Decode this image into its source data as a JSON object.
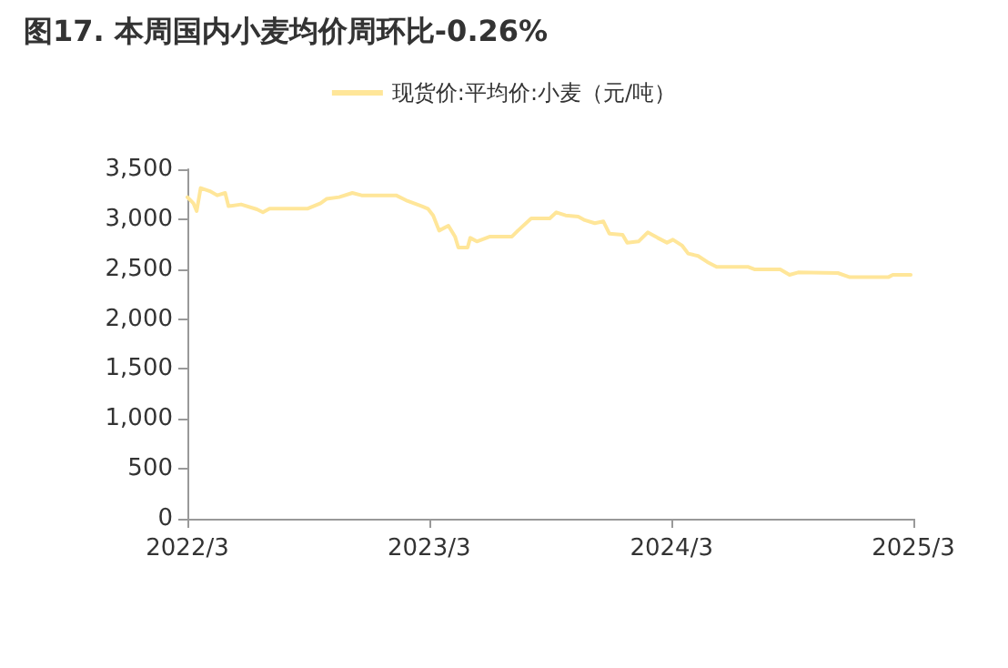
{
  "chart_data": {
    "type": "line",
    "title": "图17. 本周国内小麦均价周环比-0.26%",
    "xlim": [
      "2022-03-01",
      "2025-03-01"
    ],
    "xticks": [
      {
        "value": "2022-03-01",
        "label": "2022/3"
      },
      {
        "value": "2023-03-01",
        "label": "2023/3"
      },
      {
        "value": "2024-03-01",
        "label": "2024/3"
      },
      {
        "value": "2025-03-01",
        "label": "2025/3"
      }
    ],
    "ylim": [
      0,
      3500
    ],
    "yticks": [
      {
        "value": 0,
        "label": "0"
      },
      {
        "value": 500,
        "label": "500"
      },
      {
        "value": 1000,
        "label": "1,000"
      },
      {
        "value": 1500,
        "label": "1,500"
      },
      {
        "value": 2000,
        "label": "2,000"
      },
      {
        "value": 2500,
        "label": "2,500"
      },
      {
        "value": 3000,
        "label": "3,000"
      },
      {
        "value": 3500,
        "label": "3,500"
      }
    ],
    "grid": false,
    "legend": "top",
    "marker": "none",
    "line_style": "solid",
    "series": [
      {
        "name": "现货价:平均价:小麦（元/吨）",
        "color": "#ffe699",
        "x": [
          "2022-03-01",
          "2022-03-10",
          "2022-03-15",
          "2022-03-21",
          "2022-04-04",
          "2022-04-15",
          "2022-04-27",
          "2022-05-02",
          "2022-05-21",
          "2022-06-14",
          "2022-06-23",
          "2022-07-03",
          "2022-08-29",
          "2022-09-18",
          "2022-09-27",
          "2022-10-16",
          "2022-11-05",
          "2022-11-19",
          "2023-01-10",
          "2023-01-25",
          "2023-02-18",
          "2023-02-27",
          "2023-03-07",
          "2023-03-16",
          "2023-03-30",
          "2023-04-09",
          "2023-04-14",
          "2023-04-28",
          "2023-05-02",
          "2023-05-12",
          "2023-06-01",
          "2023-07-04",
          "2023-07-13",
          "2023-08-02",
          "2023-08-30",
          "2023-09-09",
          "2023-09-23",
          "2023-10-12",
          "2023-10-22",
          "2023-11-06",
          "2023-11-19",
          "2023-11-28",
          "2023-12-18",
          "2023-12-25",
          "2024-01-11",
          "2024-01-25",
          "2024-02-09",
          "2024-02-23",
          "2024-03-03",
          "2024-03-17",
          "2024-03-26",
          "2024-04-10",
          "2024-04-24",
          "2024-05-08",
          "2024-06-25",
          "2024-07-04",
          "2024-08-12",
          "2024-08-26",
          "2024-09-08",
          "2024-11-07",
          "2024-11-25",
          "2025-01-22",
          "2025-01-29",
          "2025-02-25"
        ],
        "values": [
          3221,
          3160,
          3081,
          3312,
          3281,
          3239,
          3263,
          3130,
          3148,
          3099,
          3069,
          3105,
          3105,
          3160,
          3203,
          3221,
          3263,
          3239,
          3239,
          3190,
          3130,
          3105,
          3038,
          2886,
          2935,
          2826,
          2716,
          2716,
          2813,
          2777,
          2826,
          2826,
          2886,
          3008,
          3008,
          3069,
          3038,
          3026,
          2990,
          2960,
          2978,
          2856,
          2844,
          2765,
          2777,
          2868,
          2813,
          2765,
          2795,
          2735,
          2656,
          2632,
          2571,
          2522,
          2522,
          2498,
          2498,
          2443,
          2467,
          2461,
          2419,
          2419,
          2443,
          2443
        ]
      }
    ]
  }
}
